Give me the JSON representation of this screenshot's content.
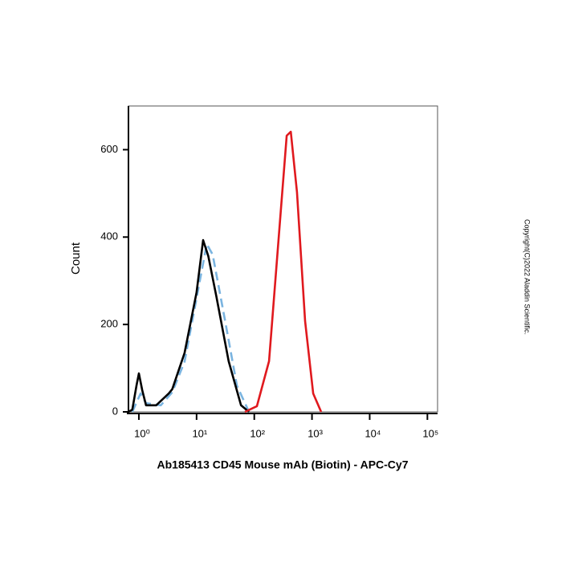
{
  "chart_data": {
    "type": "line",
    "xlabel": "Ab185413 CD45 Mouse mAb (Biotin) - APC-Cy7",
    "ylabel": "Count",
    "watermark": "Copyright(C)2022 Aladdin Scientific.",
    "xscale": "log",
    "xlim": [
      0.66,
      150000
    ],
    "ylim": [
      0,
      700
    ],
    "xticks": [
      {
        "value": 1,
        "label": "10⁰"
      },
      {
        "value": 10,
        "label": "10¹"
      },
      {
        "value": 100,
        "label": "10²"
      },
      {
        "value": 1000,
        "label": "10³"
      },
      {
        "value": 10000,
        "label": "10⁴"
      },
      {
        "value": 100000,
        "label": "10⁵"
      }
    ],
    "yticks": [
      0,
      200,
      400,
      600
    ],
    "series": [
      {
        "color": "#7ab4e0",
        "dashed": true,
        "x": [
          0.77,
          1.07,
          1.33,
          2.4,
          3.8,
          6.2,
          10,
          15,
          19,
          31,
          50,
          81
        ],
        "values": [
          0,
          42,
          20,
          15,
          45,
          115,
          260,
          384,
          360,
          210,
          60,
          0
        ]
      },
      {
        "color": "#000000",
        "dashed": false,
        "x": [
          0.66,
          0.77,
          0.91,
          1,
          1.14,
          1.33,
          2,
          3.3,
          3.8,
          6.2,
          10,
          13,
          16,
          22,
          36,
          59,
          81
        ],
        "values": [
          0,
          5,
          60,
          88,
          50,
          15,
          15,
          42,
          52,
          135,
          273,
          393,
          356,
          264,
          116,
          15,
          0
        ]
      },
      {
        "color": "#e0191e",
        "dashed": false,
        "x": [
          69,
          111,
          180,
          290,
          365,
          430,
          550,
          760,
          1050,
          1440
        ],
        "values": [
          0,
          13,
          116,
          466,
          632,
          641,
          503,
          208,
          42,
          0
        ]
      }
    ]
  }
}
